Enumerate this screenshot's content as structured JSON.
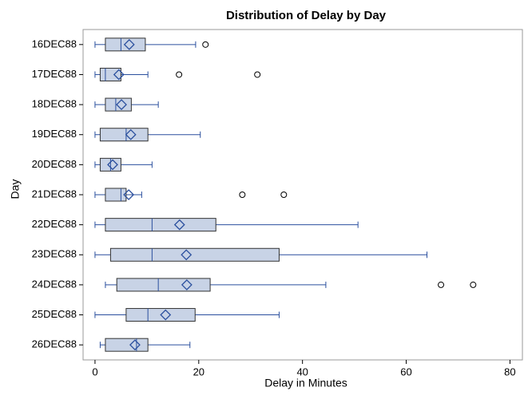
{
  "chart_data": {
    "type": "box",
    "title": "Distribution of Delay by Day",
    "xlabel": "Delay in Minutes",
    "ylabel": "Day",
    "categories": [
      "16DEC88",
      "17DEC88",
      "18DEC88",
      "19DEC88",
      "20DEC88",
      "21DEC88",
      "22DEC88",
      "23DEC88",
      "24DEC88",
      "25DEC88",
      "26DEC88"
    ],
    "boxes": [
      {
        "min": 0,
        "q1": 2,
        "median": 5,
        "q3": 9.7,
        "max": 19.4,
        "mean": 6.6,
        "outliers": [
          21.3
        ]
      },
      {
        "min": 0,
        "q1": 1,
        "median": 2,
        "q3": 5,
        "max": 10.2,
        "mean": 4.6,
        "outliers": [
          16.2,
          31.3
        ]
      },
      {
        "min": 0,
        "q1": 2,
        "median": 4,
        "q3": 7,
        "max": 12.2,
        "mean": 5.1,
        "outliers": []
      },
      {
        "min": 0,
        "q1": 1,
        "median": 6,
        "q3": 10.2,
        "max": 20.3,
        "mean": 6.9,
        "outliers": []
      },
      {
        "min": 0,
        "q1": 1,
        "median": 3,
        "q3": 5,
        "max": 11,
        "mean": 3.4,
        "outliers": []
      },
      {
        "min": 0,
        "q1": 2,
        "median": 5,
        "q3": 6,
        "max": 9,
        "mean": 6.5,
        "outliers": [
          28.4,
          36.4
        ]
      },
      {
        "min": 0,
        "q1": 2,
        "median": 11,
        "q3": 23.3,
        "max": 50.7,
        "mean": 16.3,
        "outliers": []
      },
      {
        "min": 0,
        "q1": 3,
        "median": 11,
        "q3": 35.5,
        "max": 64,
        "mean": 17.6,
        "outliers": []
      },
      {
        "min": 2,
        "q1": 4.2,
        "median": 12.2,
        "q3": 22.2,
        "max": 44.5,
        "mean": 17.7,
        "outliers": [
          66.7,
          72.9
        ]
      },
      {
        "min": 0,
        "q1": 6,
        "median": 10.2,
        "q3": 19.3,
        "max": 35.5,
        "mean": 13.6,
        "outliers": []
      },
      {
        "min": 1,
        "q1": 2,
        "median": 8,
        "q3": 10.2,
        "max": 18.3,
        "mean": 7.7,
        "outliers": []
      }
    ],
    "box_color": "#c8d3e6",
    "line_color": "#2a4f9e",
    "xlim": [
      -2.3,
      82.4
    ],
    "xticks": [
      0,
      20,
      40,
      60,
      80
    ]
  }
}
